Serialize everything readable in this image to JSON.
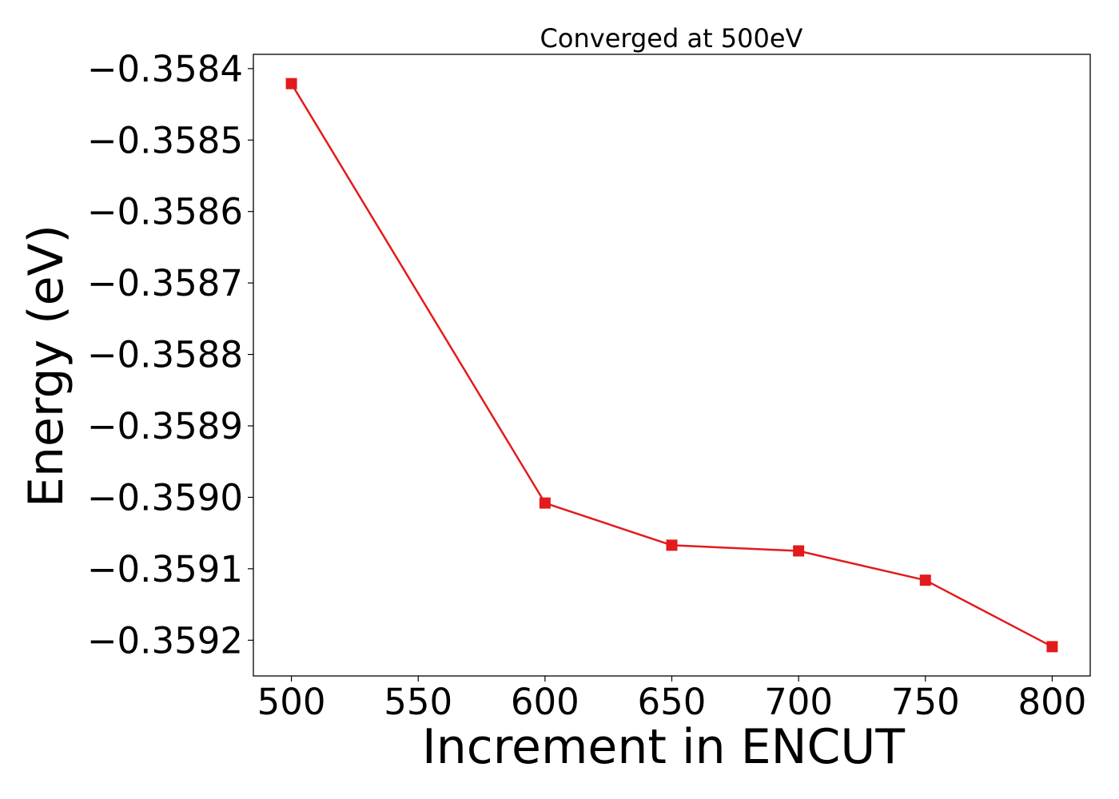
{
  "chart_data": {
    "type": "line",
    "title": "Converged at 500eV",
    "xlabel": "Increment in ENCUT",
    "ylabel": "Energy (eV)",
    "x": [
      500,
      600,
      650,
      700,
      750,
      800
    ],
    "series": [
      {
        "values": [
          -0.358421,
          -0.359008,
          -0.359067,
          -0.359075,
          -0.359116,
          -0.359209
        ],
        "color": "#e31a1c",
        "marker": "square"
      }
    ],
    "xlim": [
      485,
      815
    ],
    "ylim": [
      -0.35925,
      -0.35838
    ],
    "xticks": [
      500,
      550,
      600,
      650,
      700,
      750,
      800
    ],
    "xtick_labels": [
      "500",
      "550",
      "600",
      "650",
      "700",
      "750",
      "800"
    ],
    "yticks": [
      -0.3584,
      -0.3585,
      -0.3586,
      -0.3587,
      -0.3588,
      -0.3589,
      -0.359,
      -0.3591,
      -0.3592
    ],
    "ytick_labels": [
      "−0.3584",
      "−0.3585",
      "−0.3586",
      "−0.3587",
      "−0.3588",
      "−0.3589",
      "−0.3590",
      "−0.3591",
      "−0.3592"
    ],
    "grid": false,
    "legend": false
  }
}
